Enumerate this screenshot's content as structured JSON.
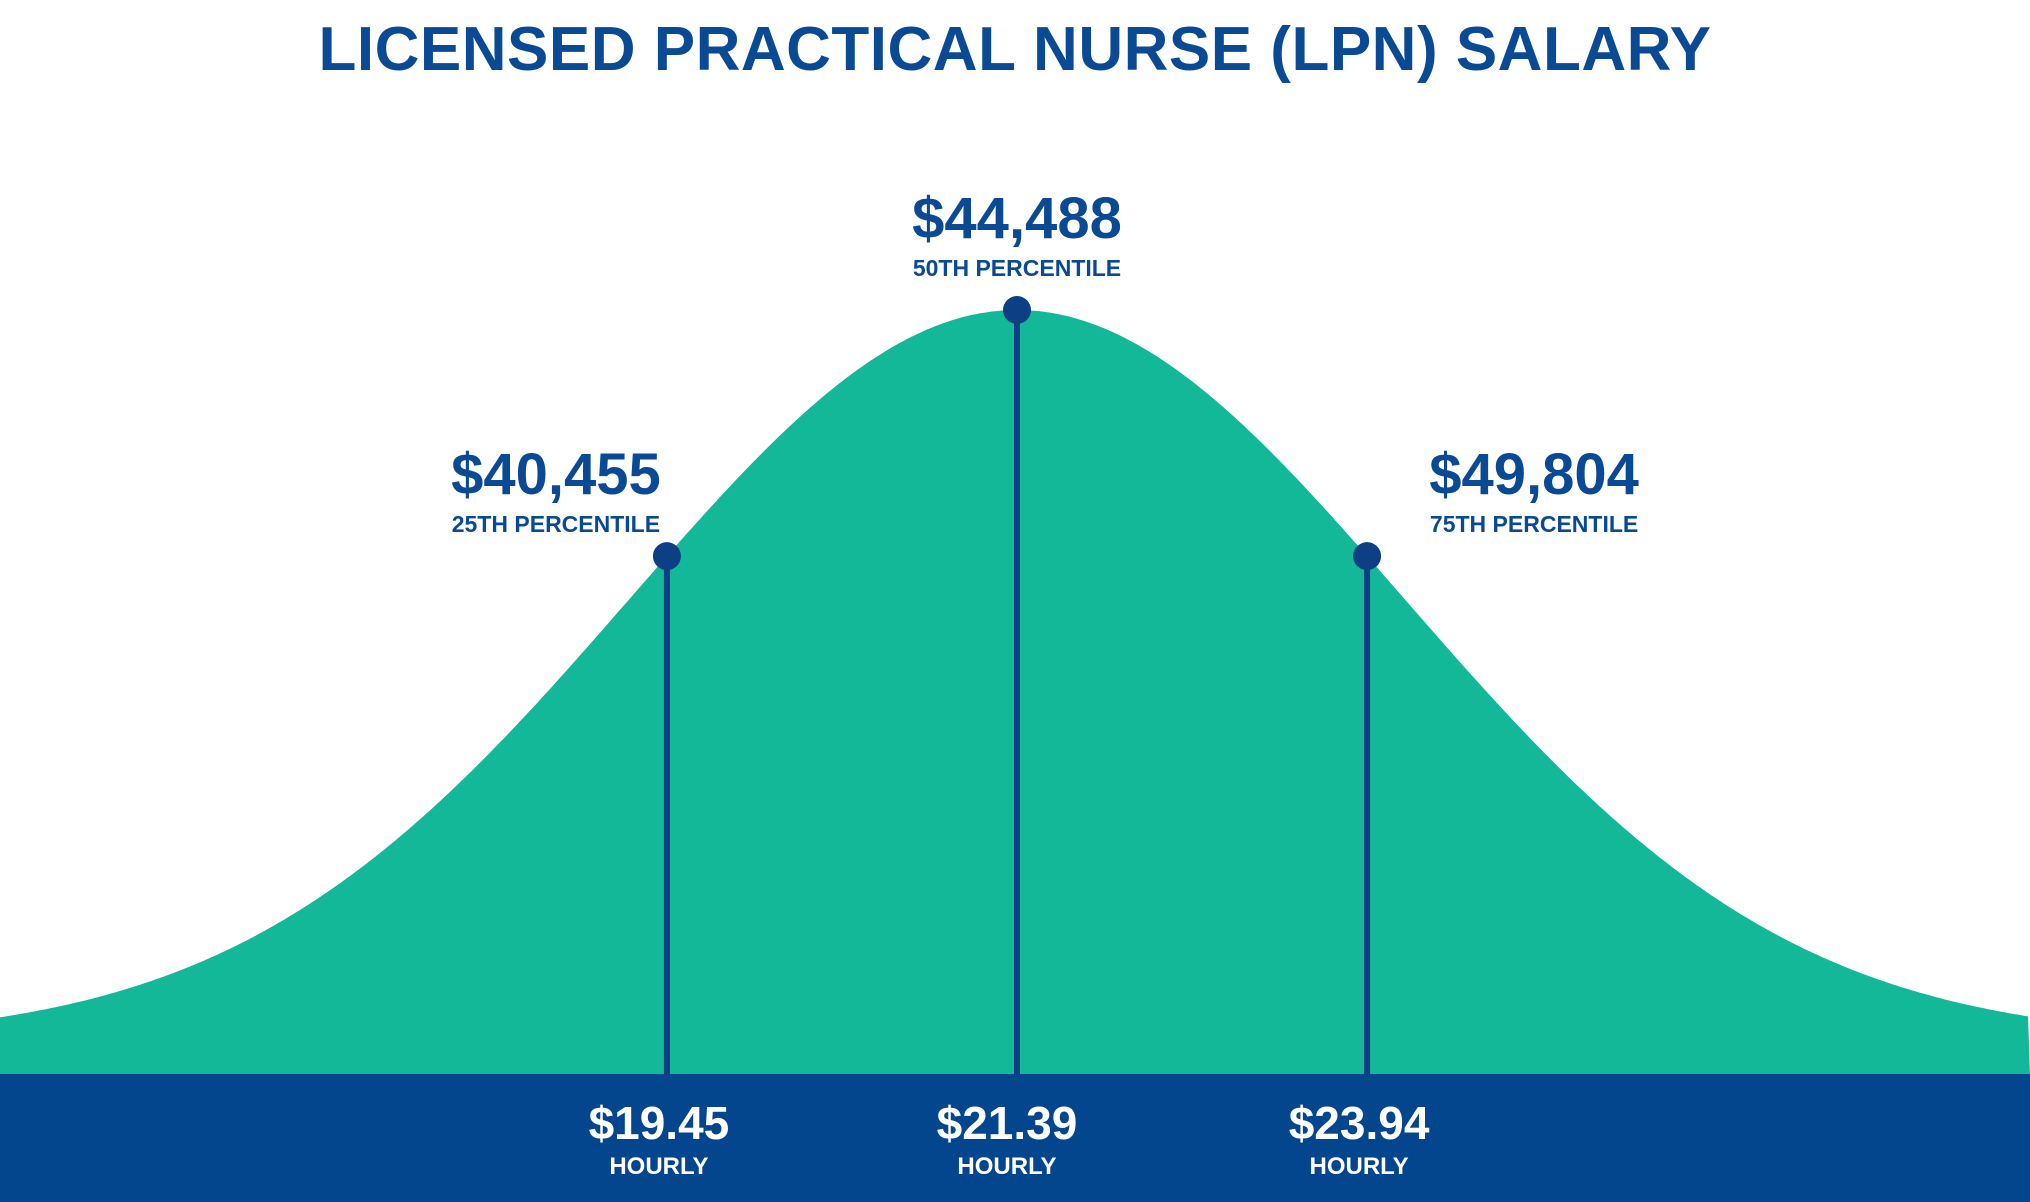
{
  "colors": {
    "curve_fill": "#13b898",
    "band_fill": "#03468e",
    "marker": "#0c3f84",
    "title_text": "#0a4a94",
    "band_text": "#ffffff"
  },
  "chart_data": {
    "type": "area",
    "title": "LICENSED PRACTICAL NURSE (LPN) SALARY",
    "curve": "bell-shaped distribution",
    "markers": [
      {
        "percentile": 25,
        "annual_label": "$40,455",
        "percentile_label": "25TH PERCENTILE",
        "hourly_label": "$19.45",
        "hourly_unit_label": "HOURLY"
      },
      {
        "percentile": 50,
        "annual_label": "$44,488",
        "percentile_label": "50TH PERCENTILE",
        "hourly_label": "$21.39",
        "hourly_unit_label": "HOURLY"
      },
      {
        "percentile": 75,
        "annual_label": "$49,804",
        "percentile_label": "75TH PERCENTILE",
        "hourly_label": "$23.94",
        "hourly_unit_label": "HOURLY"
      }
    ]
  }
}
